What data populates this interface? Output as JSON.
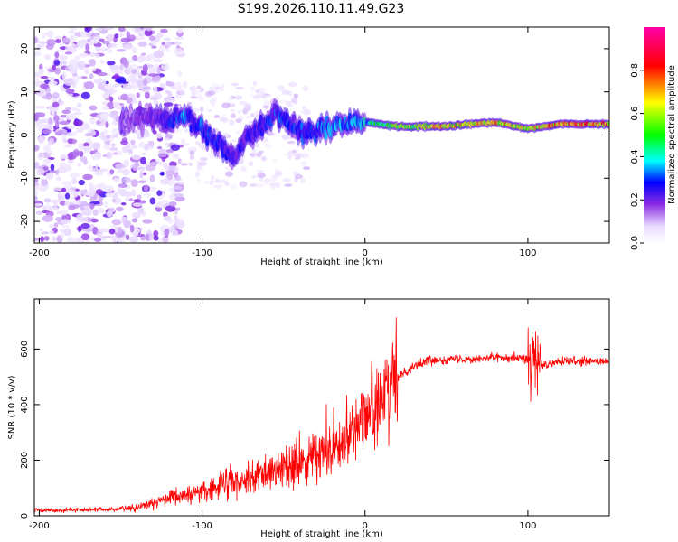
{
  "title": "S199.2026.110.11.49.G23",
  "chart_data": [
    {
      "type": "heatmap",
      "xlabel": "Height of straight line (km)",
      "ylabel": "Frequency (Hz)",
      "xlim": [
        -203,
        150
      ],
      "ylim": [
        -25,
        25
      ],
      "xticks": [
        -200,
        -100,
        0,
        100
      ],
      "yticks": [
        -20,
        -10,
        0,
        10,
        20
      ],
      "colorbar": {
        "label": "Normalized spectral amplitude",
        "range": [
          0,
          1
        ],
        "ticks": [
          "0.0",
          "0.2",
          "0.4",
          "0.6",
          "0.8"
        ],
        "colors": [
          "#ffffff",
          "#8a2be2",
          "#0000ff",
          "#00ffff",
          "#00ff00",
          "#ffff00",
          "#ff0000",
          "#ff00aa"
        ]
      },
      "ridge": [
        {
          "x": -150,
          "y": 3.5,
          "v": 0.15
        },
        {
          "x": -130,
          "y": 4,
          "v": 0.2
        },
        {
          "x": -110,
          "y": 4,
          "v": 0.35
        },
        {
          "x": -95,
          "y": 0,
          "v": 0.3
        },
        {
          "x": -80,
          "y": -5,
          "v": 0.25
        },
        {
          "x": -70,
          "y": 0,
          "v": 0.25
        },
        {
          "x": -55,
          "y": 5,
          "v": 0.3
        },
        {
          "x": -40,
          "y": 1,
          "v": 0.3
        },
        {
          "x": -20,
          "y": 2,
          "v": 0.35
        },
        {
          "x": 0,
          "y": 3,
          "v": 0.4
        },
        {
          "x": 20,
          "y": 2,
          "v": 0.6
        },
        {
          "x": 50,
          "y": 2,
          "v": 0.7
        },
        {
          "x": 80,
          "y": 3,
          "v": 0.75
        },
        {
          "x": 100,
          "y": 1.5,
          "v": 0.65
        },
        {
          "x": 120,
          "y": 2.5,
          "v": 0.8
        },
        {
          "x": 150,
          "y": 2.5,
          "v": 0.8
        }
      ]
    },
    {
      "type": "line",
      "color": "#ff0000",
      "xlabel": "Height of straight line (km)",
      "ylabel": "SNR (10 * v/v)",
      "xlim": [
        -203,
        150
      ],
      "ylim": [
        0,
        780
      ],
      "xticks": [
        -200,
        -100,
        0,
        100
      ],
      "yticks": [
        0,
        200,
        400,
        600
      ],
      "trend": {
        "x": [
          -203,
          -160,
          -140,
          -120,
          -100,
          -80,
          -60,
          -40,
          -20,
          -10,
          0,
          10,
          20,
          30,
          40,
          60,
          80,
          95,
          100,
          110,
          120,
          150
        ],
        "y": [
          20,
          22,
          30,
          60,
          90,
          120,
          150,
          190,
          240,
          300,
          360,
          400,
          500,
          540,
          560,
          565,
          570,
          570,
          560,
          540,
          555,
          555
        ]
      }
    }
  ]
}
